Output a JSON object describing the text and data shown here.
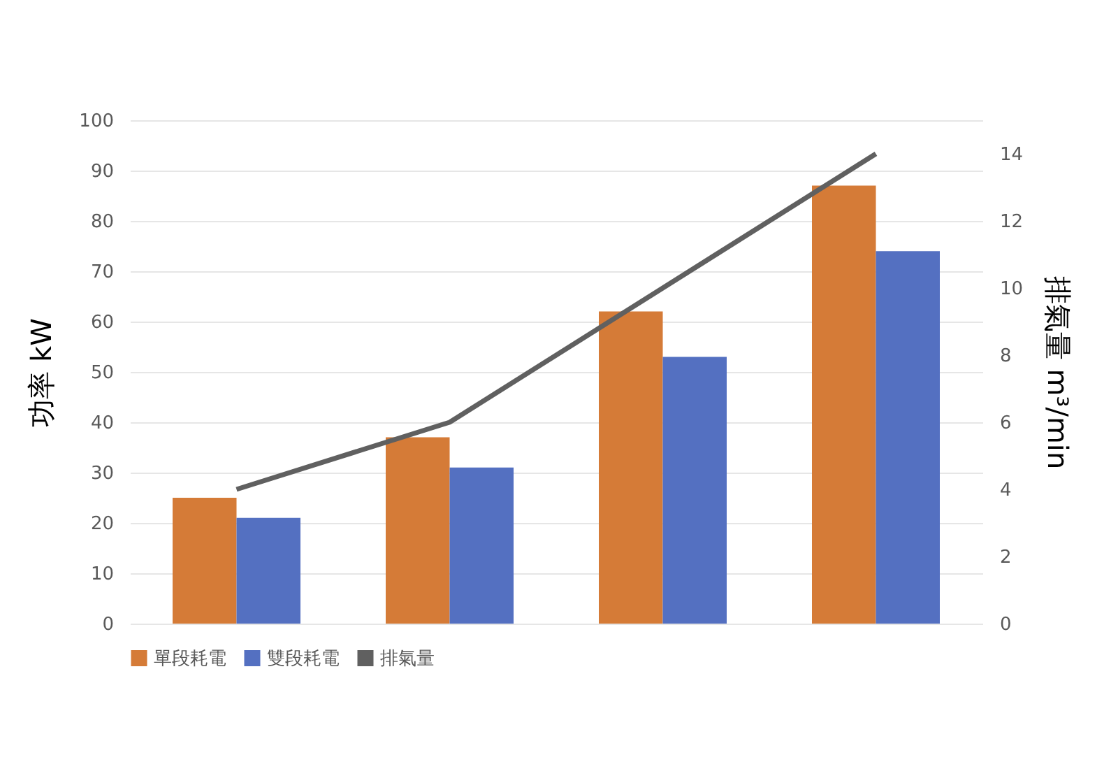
{
  "chart_data": {
    "type": "bar",
    "categories": [
      null,
      null,
      null,
      null
    ],
    "series": [
      {
        "name": "單段耗電",
        "color": "#d57b37",
        "values": [
          25,
          37,
          62,
          87
        ]
      },
      {
        "name": "雙段耗電",
        "color": "#5470c1",
        "values": [
          21,
          31,
          53,
          74
        ]
      },
      {
        "name": "排氣量",
        "color": "#606060",
        "type": "line",
        "axis": "y2",
        "values": [
          4,
          6,
          10,
          14
        ]
      }
    ],
    "ylabel": "功率 kW",
    "y2label": "排氣量 m³/min",
    "ylim": [
      0,
      100
    ],
    "yticks": [
      0,
      10,
      20,
      30,
      40,
      50,
      60,
      70,
      80,
      90,
      100
    ],
    "y2lim": [
      0,
      15
    ],
    "y2ticks": [
      0,
      2,
      4,
      6,
      8,
      10,
      12,
      14
    ],
    "grid": "y",
    "legend": "bottom"
  }
}
